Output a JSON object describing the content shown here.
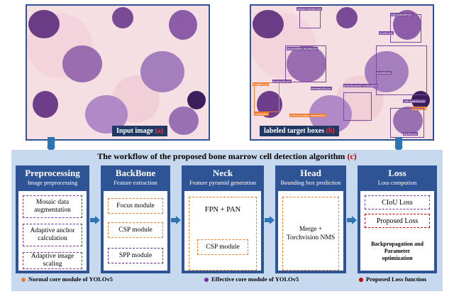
{
  "images": {
    "input_caption": "Input image",
    "input_tag": "(a)",
    "labeled_caption": "labeled target boxes",
    "labeled_tag": "(b)",
    "box_labels": [
      "mature erythrocyte",
      "stab granulocyte",
      "myelocyte",
      "neutrophilic myelocyte",
      "lymphocyte",
      "promyelocyte",
      "myeloblast",
      "metamyelocyte",
      "polychromatic normoblast",
      "orthochromatic normoblast",
      "stab granulocyte",
      "segmented",
      "eosinophil",
      "myelocyte"
    ]
  },
  "workflow": {
    "title": "The workflow of the proposed bone marrow cell detection algorithm",
    "title_tag": "(c)",
    "modules": {
      "preprocessing": {
        "title": "Preprocessing",
        "subtitle": "Image preprocessing",
        "items": [
          "Mosaic data augmentation",
          "Adaptive anchor calculation",
          "Adaptive image scaling"
        ]
      },
      "backbone": {
        "title": "BackBone",
        "subtitle": "Feature extraction",
        "items": [
          "Focus module",
          "CSP module",
          "SPP module"
        ]
      },
      "neck": {
        "title": "Neck",
        "subtitle": "Feature pyramid generation",
        "main": "FPN + PAN",
        "items": [
          "CSP module"
        ]
      },
      "head": {
        "title": "Head",
        "subtitle": "Bounding box prediction",
        "items": [
          "Merge + Torchvision NMS"
        ]
      },
      "loss": {
        "title": "Loss",
        "subtitle": "Loss compution",
        "items": [
          "CIoU Loss",
          "Proposed Loss"
        ],
        "note": "Backpropagation and Parameter optimization"
      }
    },
    "legend": [
      {
        "label": "Normal core module of YOLOv5",
        "color": "#ed7d31"
      },
      {
        "label": "Effective core module of YOLOv5",
        "color": "#7030a0"
      },
      {
        "label": "Proposed Loss function",
        "color": "#c00000"
      }
    ]
  }
}
